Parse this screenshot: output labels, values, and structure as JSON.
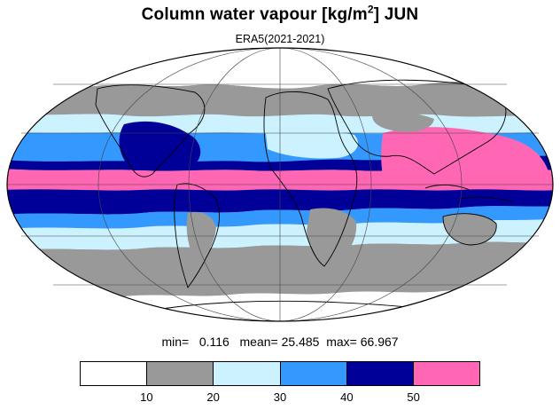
{
  "title": {
    "text": "Column water vapour [kg/m",
    "sup": "2",
    "suffix": "] JUN"
  },
  "subtitle": "ERA5(2021-2021)",
  "stats": {
    "min_label": "min=",
    "min_value": "0.116",
    "mean_label": "mean=",
    "mean_value": "25.485",
    "max_label": "max=",
    "max_value": "66.967"
  },
  "colorbar": {
    "colors": [
      "#ffffff",
      "#999999",
      "#ccf2ff",
      "#3399ff",
      "#000099",
      "#ff66b3"
    ],
    "levels": [
      "10",
      "20",
      "30",
      "40",
      "50"
    ]
  },
  "map": {
    "projection": "Mollweide",
    "land_outline": "#000000",
    "band_colors": {
      "white": "#ffffff",
      "gray": "#999999",
      "light_blue": "#ccf2ff",
      "blue": "#3399ff",
      "dark_blue": "#000099",
      "pink": "#ff66b3"
    }
  }
}
